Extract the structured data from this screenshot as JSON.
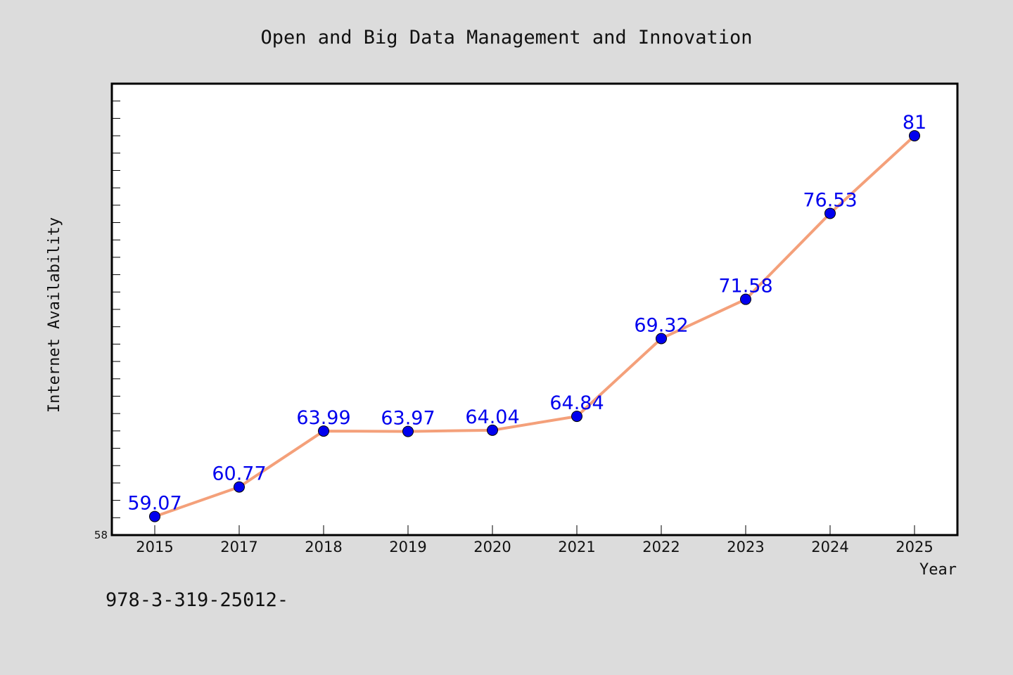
{
  "chart_data": {
    "type": "line",
    "title": "Open and Big Data Management and Innovation",
    "xlabel": "Year",
    "ylabel": "Internet Availability",
    "categories": [
      "2015",
      "2017",
      "2018",
      "2019",
      "2020",
      "2021",
      "2022",
      "2023",
      "2024",
      "2025"
    ],
    "series": [
      {
        "values": [
          59.07,
          60.77,
          63.99,
          63.97,
          64.04,
          64.84,
          69.32,
          71.58,
          76.53,
          81
        ]
      }
    ],
    "data_labels": [
      "59.07",
      "60.77",
      "63.99",
      "63.97",
      "64.04",
      "64.84",
      "69.32",
      "71.58",
      "76.53",
      "81"
    ],
    "ylim": [
      58,
      84
    ],
    "ytick_labels": [
      "58"
    ],
    "grid": false,
    "legend": "none",
    "colors": {
      "background": "#dcdcdc",
      "plot_background": "#ffffff",
      "line": "#f4a07a",
      "marker": "#0000ee",
      "data_label": "#0000ee"
    }
  },
  "footer": {
    "text": "978-3-319-25012-"
  }
}
